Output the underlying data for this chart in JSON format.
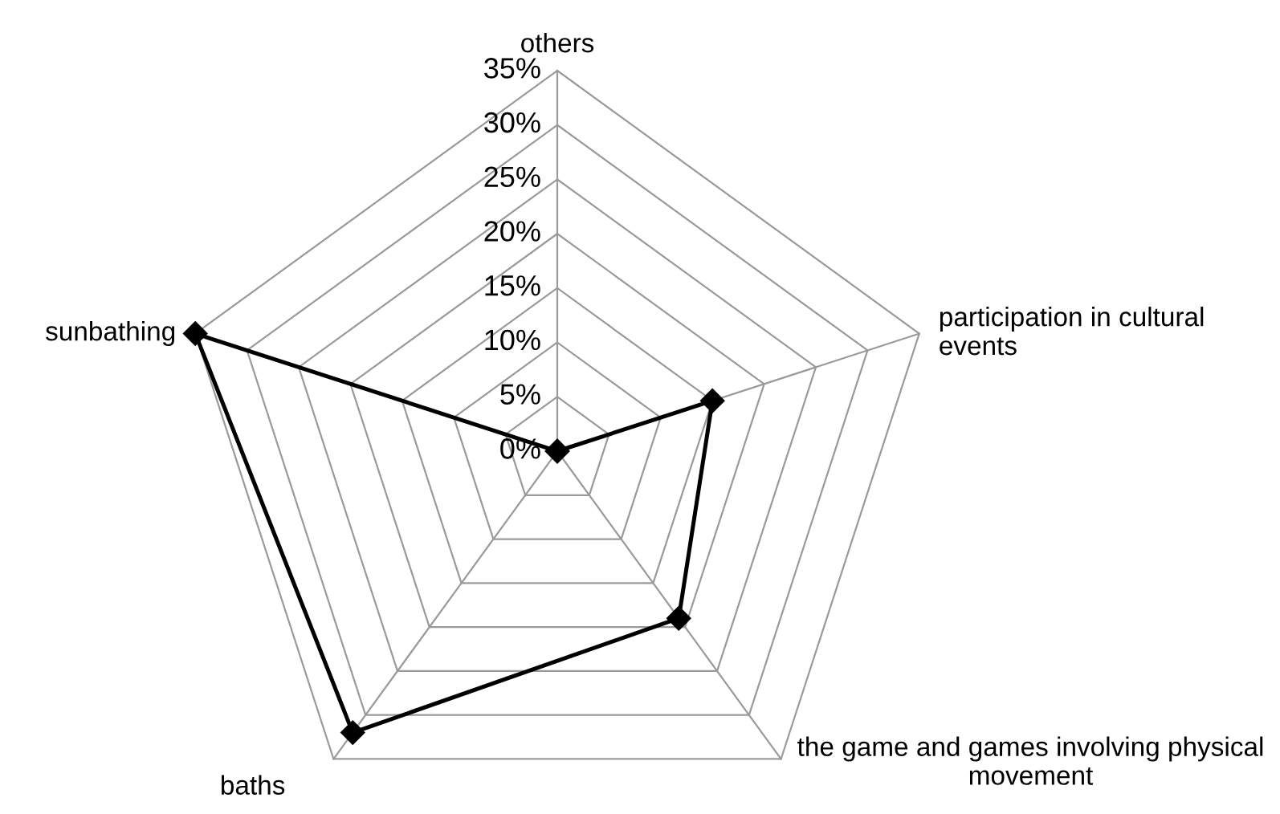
{
  "chart_data": {
    "type": "radar",
    "categories": [
      "others",
      "participation in cultural events",
      "the game and games involving physical movement",
      "baths",
      "sunbathing"
    ],
    "series": [
      {
        "color": "#000000",
        "values": [
          0,
          15,
          19,
          32,
          35
        ]
      }
    ],
    "ylim": [
      0,
      35
    ],
    "yticks": [
      {
        "value": 0,
        "label": "0%"
      },
      {
        "value": 5,
        "label": "5%"
      },
      {
        "value": 10,
        "label": "10%"
      },
      {
        "value": 15,
        "label": "15%"
      },
      {
        "value": 20,
        "label": "20%"
      },
      {
        "value": 25,
        "label": "25%"
      },
      {
        "value": 30,
        "label": "30%"
      },
      {
        "value": 35,
        "label": "35%"
      }
    ],
    "grid": true,
    "marker": "diamond",
    "line_style": "solid"
  }
}
